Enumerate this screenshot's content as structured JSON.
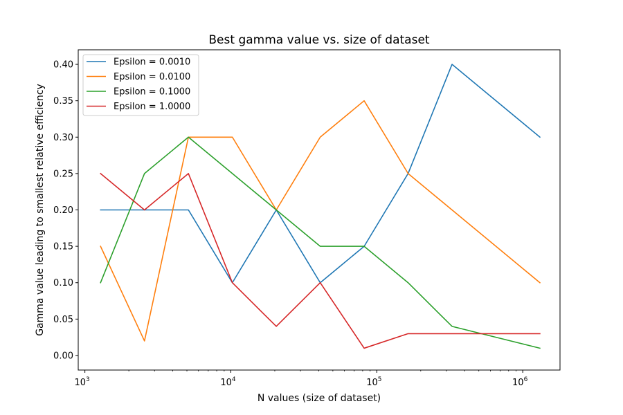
{
  "chart_data": {
    "type": "line",
    "title": "Best gamma value vs. size of dataset",
    "xlabel": "N values (size of dataset)",
    "ylabel": "Gamma value leading to smallest relative efficiency",
    "xscale": "log",
    "xlim": [
      900,
      1800000
    ],
    "ylim": [
      -0.02,
      0.42
    ],
    "x_ticks": [
      {
        "value": 1000,
        "base": "10",
        "exp": "3"
      },
      {
        "value": 10000,
        "base": "10",
        "exp": "4"
      },
      {
        "value": 100000,
        "base": "10",
        "exp": "5"
      },
      {
        "value": 1000000,
        "base": "10",
        "exp": "6"
      }
    ],
    "y_ticks": [
      {
        "value": 0.0,
        "label": "0.00"
      },
      {
        "value": 0.05,
        "label": "0.05"
      },
      {
        "value": 0.1,
        "label": "0.10"
      },
      {
        "value": 0.15,
        "label": "0.15"
      },
      {
        "value": 0.2,
        "label": "0.20"
      },
      {
        "value": 0.25,
        "label": "0.25"
      },
      {
        "value": 0.3,
        "label": "0.30"
      },
      {
        "value": 0.35,
        "label": "0.35"
      },
      {
        "value": 0.4,
        "label": "0.40"
      }
    ],
    "x": [
      1280,
      2560,
      5120,
      10240,
      20480,
      40960,
      81920,
      163840,
      327680,
      1310720
    ],
    "series": [
      {
        "name": "Epsilon = 0.0010",
        "color": "#1f77b4",
        "values": [
          0.2,
          0.2,
          0.2,
          0.1,
          0.2,
          0.1,
          0.15,
          0.25,
          0.4,
          0.3
        ]
      },
      {
        "name": "Epsilon = 0.0100",
        "color": "#ff7f0e",
        "values": [
          0.15,
          0.02,
          0.3,
          0.3,
          0.2,
          0.3,
          0.35,
          0.25,
          0.2,
          0.1
        ]
      },
      {
        "name": "Epsilon = 0.1000",
        "color": "#2ca02c",
        "values": [
          0.1,
          0.25,
          0.3,
          0.25,
          0.2,
          0.15,
          0.15,
          0.1,
          0.04,
          0.01
        ]
      },
      {
        "name": "Epsilon = 1.0000",
        "color": "#d62728",
        "values": [
          0.25,
          0.2,
          0.25,
          0.1,
          0.04,
          0.1,
          0.01,
          0.03,
          0.03,
          0.03
        ]
      }
    ],
    "legend_position": "top-left",
    "grid": false
  }
}
